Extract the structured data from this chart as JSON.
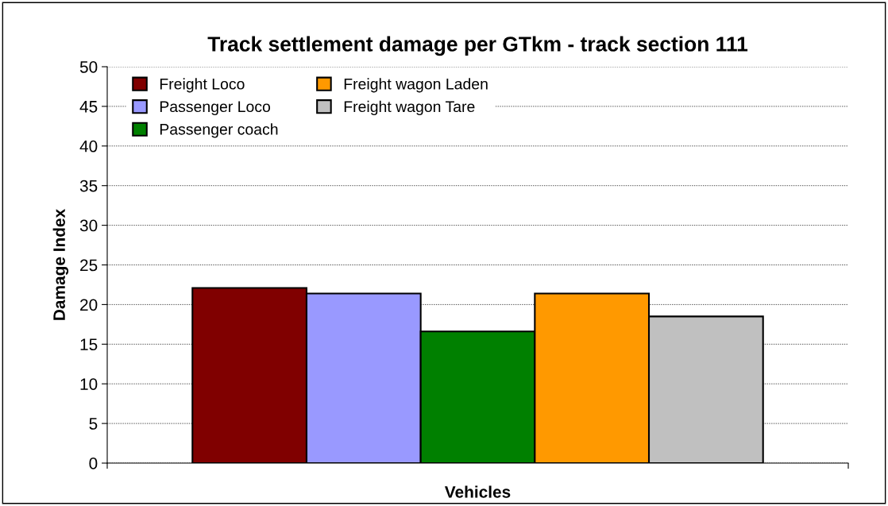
{
  "chart_data": {
    "type": "bar",
    "title": "Track settlement damage per GTkm - track section 111",
    "xlabel": "Vehicles",
    "ylabel": "Damage Index",
    "categories": [
      null
    ],
    "series": [
      {
        "name": "Freight Loco",
        "color": "#800000",
        "values": [
          22.1
        ]
      },
      {
        "name": "Passenger Loco",
        "color": "#9999ff",
        "values": [
          21.4
        ]
      },
      {
        "name": "Passenger coach",
        "color": "#008000",
        "values": [
          16.6
        ]
      },
      {
        "name": "Freight wagon Laden",
        "color": "#ff9900",
        "values": [
          21.4
        ]
      },
      {
        "name": "Freight wagon Tare",
        "color": "#c0c0c0",
        "values": [
          18.5
        ]
      }
    ],
    "ylim": [
      0,
      50
    ],
    "yticks": [
      0,
      5,
      10,
      15,
      20,
      25,
      30,
      35,
      40,
      45,
      50
    ],
    "grid": "y",
    "legend": "top left"
  }
}
